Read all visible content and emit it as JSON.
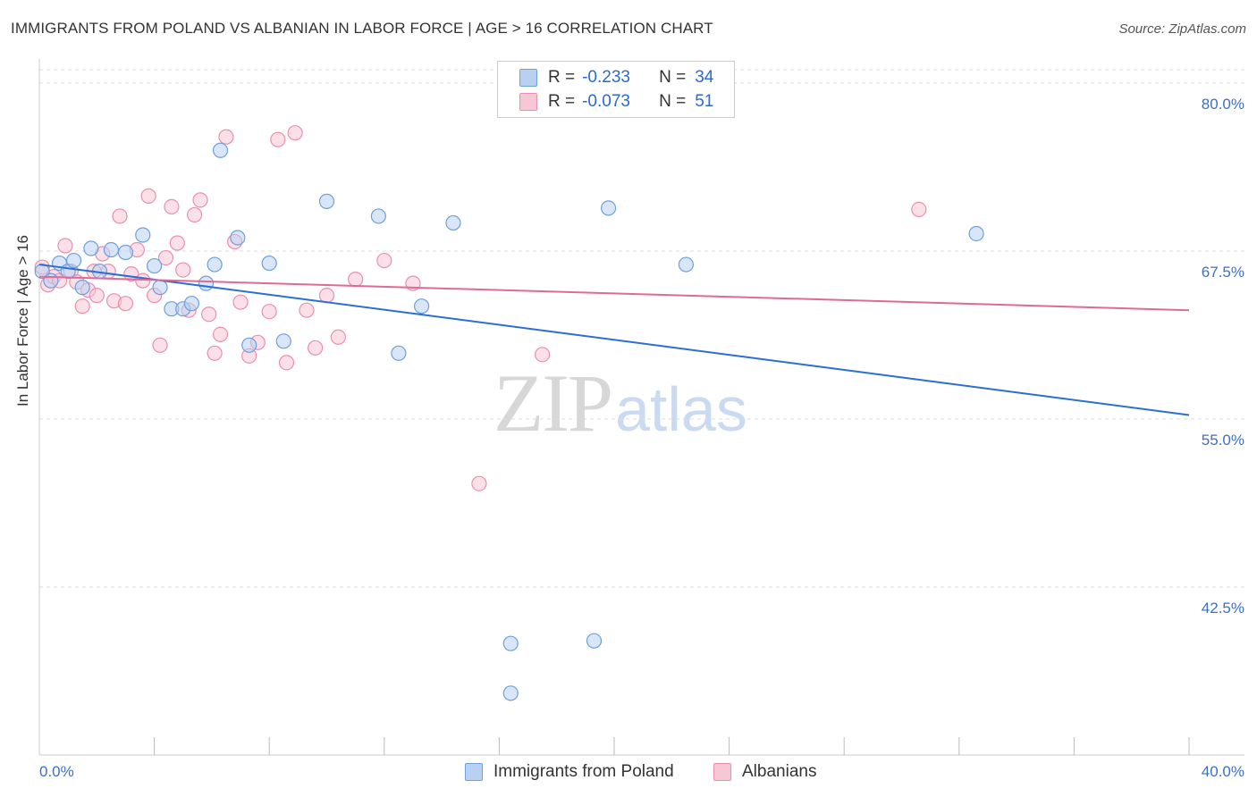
{
  "title": "IMMIGRANTS FROM POLAND VS ALBANIAN IN LABOR FORCE | AGE > 16 CORRELATION CHART",
  "source": "Source: ZipAtlas.com",
  "watermark": {
    "zip": "ZIP",
    "atlas": "atlas"
  },
  "legend": {
    "rows": [
      {
        "r_label": "R =",
        "r_value": "-0.233",
        "n_label": "N =",
        "n_value": "34"
      },
      {
        "r_label": "R =",
        "r_value": "-0.073",
        "n_label": "N =",
        "n_value": "51"
      }
    ]
  },
  "colors": {
    "poland_fill": "#b8d1f3",
    "poland_stroke": "#6e9fde",
    "poland_line": "#2a6fd6",
    "albanian_fill": "#f8c7d6",
    "albanian_stroke": "#ea8fae",
    "albanian_line": "#e06a94",
    "axis_text": "#3a6fc8",
    "grid": "#dddddd"
  },
  "chart_data": {
    "type": "scatter",
    "title": "IMMIGRANTS FROM POLAND VS ALBANIAN IN LABOR FORCE | AGE > 16 CORRELATION CHART",
    "xlabel": "",
    "ylabel": "In Labor Force | Age > 16",
    "xlim": [
      0,
      40
    ],
    "ylim": [
      30,
      81
    ],
    "x_tick_labels": [
      "0.0%",
      "40.0%"
    ],
    "y_ticks": [
      42.5,
      55.0,
      67.5,
      80.0
    ],
    "y_tick_labels": [
      "42.5%",
      "55.0%",
      "67.5%",
      "80.0%"
    ],
    "grid": true,
    "legend_position": "bottom-center",
    "series": [
      {
        "name": "Immigrants from Poland",
        "r": -0.233,
        "n": 34,
        "trend": {
          "x": [
            0,
            40
          ],
          "y": [
            66.5,
            55.3
          ]
        },
        "points": [
          [
            0.1,
            66.0
          ],
          [
            0.4,
            65.3
          ],
          [
            0.7,
            66.6
          ],
          [
            1.0,
            66.0
          ],
          [
            1.2,
            66.8
          ],
          [
            1.5,
            64.8
          ],
          [
            1.8,
            67.7
          ],
          [
            2.1,
            66.0
          ],
          [
            2.5,
            67.6
          ],
          [
            3.0,
            67.4
          ],
          [
            3.6,
            68.7
          ],
          [
            4.0,
            66.4
          ],
          [
            4.2,
            64.8
          ],
          [
            4.6,
            63.2
          ],
          [
            5.0,
            63.2
          ],
          [
            5.3,
            63.6
          ],
          [
            5.8,
            65.1
          ],
          [
            6.1,
            66.5
          ],
          [
            6.3,
            75.0
          ],
          [
            6.9,
            68.5
          ],
          [
            7.3,
            60.5
          ],
          [
            8.0,
            66.6
          ],
          [
            8.5,
            60.8
          ],
          [
            10.0,
            71.2
          ],
          [
            11.8,
            70.1
          ],
          [
            12.5,
            59.9
          ],
          [
            13.3,
            63.4
          ],
          [
            14.4,
            69.6
          ],
          [
            16.4,
            38.3
          ],
          [
            16.4,
            34.6
          ],
          [
            19.3,
            38.5
          ],
          [
            19.8,
            70.7
          ],
          [
            22.5,
            66.5
          ],
          [
            32.6,
            68.8
          ]
        ]
      },
      {
        "name": "Albanians",
        "r": -0.073,
        "n": 51,
        "trend": {
          "x": [
            0,
            40
          ],
          "y": [
            65.6,
            63.1
          ]
        },
        "points": [
          [
            0.1,
            66.3
          ],
          [
            0.3,
            65.0
          ],
          [
            0.5,
            65.6
          ],
          [
            0.7,
            65.3
          ],
          [
            0.9,
            67.9
          ],
          [
            1.1,
            66.0
          ],
          [
            1.3,
            65.2
          ],
          [
            1.5,
            63.4
          ],
          [
            1.7,
            64.6
          ],
          [
            1.9,
            66.0
          ],
          [
            2.0,
            64.2
          ],
          [
            2.2,
            67.3
          ],
          [
            2.4,
            66.0
          ],
          [
            2.6,
            63.8
          ],
          [
            2.8,
            70.1
          ],
          [
            3.0,
            63.6
          ],
          [
            3.2,
            65.8
          ],
          [
            3.4,
            67.6
          ],
          [
            3.6,
            65.3
          ],
          [
            3.8,
            71.6
          ],
          [
            4.0,
            64.2
          ],
          [
            4.2,
            60.5
          ],
          [
            4.4,
            67.0
          ],
          [
            4.6,
            70.8
          ],
          [
            4.8,
            68.1
          ],
          [
            5.0,
            66.1
          ],
          [
            5.2,
            63.1
          ],
          [
            5.4,
            70.2
          ],
          [
            5.6,
            71.3
          ],
          [
            5.9,
            62.8
          ],
          [
            6.1,
            59.9
          ],
          [
            6.3,
            61.3
          ],
          [
            6.5,
            76.0
          ],
          [
            6.8,
            68.2
          ],
          [
            7.0,
            63.7
          ],
          [
            7.3,
            59.7
          ],
          [
            7.6,
            60.7
          ],
          [
            8.0,
            63.0
          ],
          [
            8.3,
            75.8
          ],
          [
            8.6,
            59.2
          ],
          [
            8.9,
            76.3
          ],
          [
            9.3,
            63.1
          ],
          [
            9.6,
            60.3
          ],
          [
            10.0,
            64.2
          ],
          [
            10.4,
            61.1
          ],
          [
            11.0,
            65.4
          ],
          [
            12.0,
            66.8
          ],
          [
            13.0,
            65.1
          ],
          [
            15.3,
            50.2
          ],
          [
            17.5,
            59.8
          ],
          [
            30.6,
            70.6
          ]
        ]
      }
    ]
  }
}
